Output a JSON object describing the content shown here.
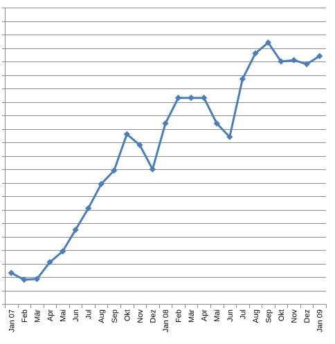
{
  "chart_data": {
    "type": "line",
    "title": "",
    "xlabel": "",
    "ylabel": "",
    "y_tick_labels_shown": false,
    "ylim": [
      0,
      22
    ],
    "y_grid_step": 1,
    "grid": "horizontal",
    "legend": "none",
    "line_color": "#4a7ebb",
    "marker": "diamond",
    "categories": [
      "Jan 07",
      "Feb",
      "Mär",
      "Apr",
      "Mai",
      "Jun",
      "Jul",
      "Aug",
      "Sep",
      "Okt",
      "Nov",
      "Dez",
      "Jan 08",
      "Feb",
      "Mär",
      "Apr",
      "Mai",
      "Jun",
      "Jul",
      "Aug",
      "Sep",
      "Okt",
      "Nov",
      "Dez",
      "Jan 09"
    ],
    "series": [
      {
        "values": [
          2.3,
          1.8,
          1.85,
          3.1,
          3.9,
          5.5,
          7.1,
          8.9,
          9.9,
          12.6,
          11.8,
          10.0,
          13.4,
          15.3,
          15.3,
          15.3,
          13.4,
          12.4,
          16.7,
          18.6,
          19.4,
          18.0,
          18.1,
          17.8,
          18.4
        ]
      }
    ]
  }
}
